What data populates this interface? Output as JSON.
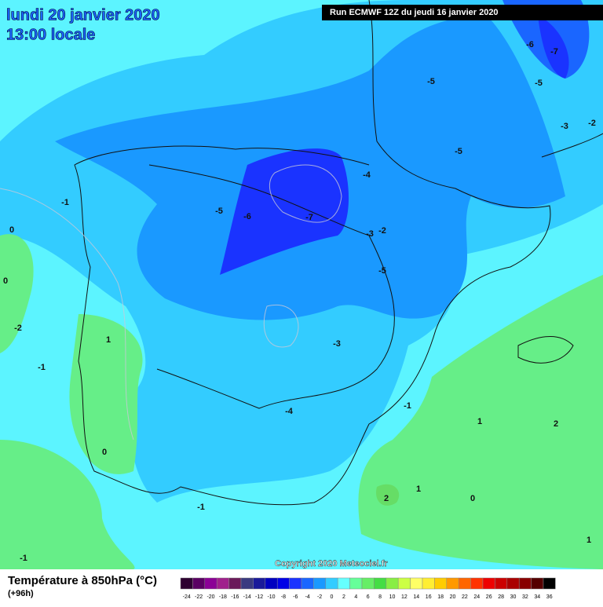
{
  "header": {
    "title": "lundi 20 janvier 2020",
    "subtitle": "13:00 locale",
    "run": "Run ECMWF 12Z du jeudi 16 janvier 2020"
  },
  "footer": {
    "title": "Température à 850hPa (°C)",
    "lead": "(+96h)",
    "copyright": "Copyright 2020 Meteociel.fr"
  },
  "scale": {
    "values": [
      -24,
      -22,
      -20,
      -18,
      -16,
      -14,
      -12,
      -10,
      -8,
      -6,
      -4,
      -2,
      0,
      2,
      4,
      6,
      8,
      10,
      12,
      14,
      16,
      18,
      20,
      22,
      24,
      26,
      28,
      30,
      32,
      34,
      36
    ],
    "colors": [
      "#2d0030",
      "#5a0063",
      "#8b0096",
      "#a0208c",
      "#6a1a5a",
      "#3a3a80",
      "#1a1a9a",
      "#0000c0",
      "#0000e6",
      "#1a33ff",
      "#1a66ff",
      "#1a99ff",
      "#33ccff",
      "#66ffff",
      "#66ff99",
      "#66ee66",
      "#44dd44",
      "#88ee44",
      "#ccff44",
      "#ffff66",
      "#ffee33",
      "#ffcc00",
      "#ff9900",
      "#ff6600",
      "#ff3300",
      "#ee0000",
      "#cc0000",
      "#aa0000",
      "#880000",
      "#550000",
      "#000000"
    ]
  },
  "labels": [
    "-6",
    "-7",
    "-5",
    "-5",
    "-3",
    "-2",
    "-5",
    "-4",
    "-1",
    "-5",
    "-6",
    "-7",
    "-3",
    "-2",
    "0",
    "0",
    "-5",
    "-2",
    "1",
    "-3",
    "-1",
    "-4",
    "-1",
    "1",
    "2",
    "0",
    "1",
    "2",
    "0",
    "-1",
    "1",
    "-1"
  ]
}
